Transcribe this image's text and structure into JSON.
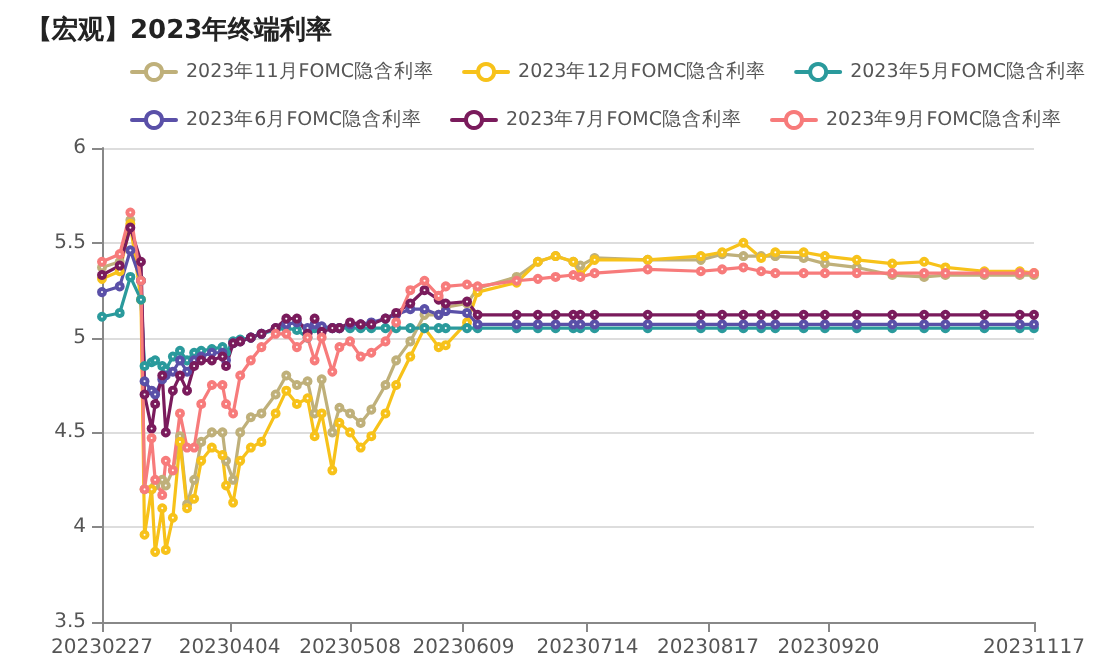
{
  "chart_data": {
    "type": "line",
    "title": "【宏观】2023年终端利率",
    "x": [
      "2023-02-27",
      "2023-03-04",
      "2023-03-07",
      "2023-03-10",
      "2023-03-11",
      "2023-03-13",
      "2023-03-14",
      "2023-03-16",
      "2023-03-17",
      "2023-03-19",
      "2023-03-21",
      "2023-03-23",
      "2023-03-25",
      "2023-03-27",
      "2023-03-30",
      "2023-04-02",
      "2023-04-03",
      "2023-04-05",
      "2023-04-07",
      "2023-04-10",
      "2023-04-13",
      "2023-04-17",
      "2023-04-20",
      "2023-04-23",
      "2023-04-26",
      "2023-04-28",
      "2023-04-30",
      "2023-05-03",
      "2023-05-05",
      "2023-05-08",
      "2023-05-11",
      "2023-05-14",
      "2023-05-18",
      "2023-05-21",
      "2023-05-25",
      "2023-05-29",
      "2023-06-02",
      "2023-06-04",
      "2023-06-10",
      "2023-06-13",
      "2023-06-24",
      "2023-06-30",
      "2023-07-05",
      "2023-07-10",
      "2023-07-12",
      "2023-07-16",
      "2023-07-31",
      "2023-08-15",
      "2023-08-21",
      "2023-08-27",
      "2023-09-01",
      "2023-09-05",
      "2023-09-13",
      "2023-09-19",
      "2023-09-28",
      "2023-10-08",
      "2023-10-17",
      "2023-10-23",
      "2023-11-03",
      "2023-11-13",
      "2023-11-17"
    ],
    "series": [
      {
        "name": "2023年11月FOMC隐含利率",
        "color": "#bfb07a",
        "values": [
          5.37,
          5.4,
          5.62,
          5.3,
          4.2,
          4.2,
          4.22,
          4.25,
          4.22,
          4.3,
          4.48,
          4.12,
          4.25,
          4.45,
          4.5,
          4.5,
          4.35,
          4.25,
          4.5,
          4.58,
          4.6,
          4.7,
          4.8,
          4.75,
          4.77,
          4.6,
          4.78,
          4.5,
          4.63,
          4.6,
          4.55,
          4.62,
          4.75,
          4.88,
          4.98,
          5.12,
          5.12,
          5.16,
          5.18,
          5.26,
          5.32,
          5.4,
          5.43,
          5.4,
          5.38,
          5.42,
          5.41,
          5.41,
          5.44,
          5.43,
          5.43,
          5.43,
          5.42,
          5.39,
          5.37,
          5.33,
          5.32,
          5.33,
          5.33,
          5.33,
          5.33
        ]
      },
      {
        "name": "2023年12月FOMC隐含利率",
        "color": "#f7c21a",
        "values": [
          5.31,
          5.35,
          5.6,
          5.2,
          3.96,
          4.2,
          3.87,
          4.1,
          3.88,
          4.05,
          4.45,
          4.1,
          4.15,
          4.35,
          4.42,
          4.38,
          4.22,
          4.13,
          4.35,
          4.42,
          4.45,
          4.6,
          4.72,
          4.65,
          4.68,
          4.48,
          4.6,
          4.3,
          4.55,
          4.5,
          4.42,
          4.48,
          4.6,
          4.75,
          4.9,
          5.05,
          4.95,
          4.96,
          5.08,
          5.24,
          5.29,
          5.4,
          5.43,
          5.4,
          5.33,
          5.41,
          5.41,
          5.43,
          5.45,
          5.5,
          5.42,
          5.45,
          5.45,
          5.43,
          5.41,
          5.39,
          5.4,
          5.37,
          5.35,
          5.35,
          5.34
        ]
      },
      {
        "name": "2023年5月FOMC隐含利率",
        "color": "#2a9a9c",
        "values": [
          5.11,
          5.13,
          5.32,
          5.2,
          4.85,
          4.87,
          4.88,
          4.85,
          4.83,
          4.9,
          4.93,
          4.88,
          4.92,
          4.93,
          4.94,
          4.95,
          4.92,
          4.98,
          4.99,
          5.0,
          5.02,
          5.04,
          5.05,
          5.04,
          5.0,
          5.05,
          5.05,
          5.05,
          5.05,
          5.05,
          5.05,
          5.05,
          5.05,
          5.05,
          5.05,
          5.05,
          5.05,
          5.05,
          5.05,
          5.05,
          5.05,
          5.05,
          5.05,
          5.05,
          5.05,
          5.05,
          5.05,
          5.05,
          5.05,
          5.05,
          5.05,
          5.05,
          5.05,
          5.05,
          5.05,
          5.05,
          5.05,
          5.05,
          5.05,
          5.05,
          5.05
        ]
      },
      {
        "name": "2023年6月FOMC隐含利率",
        "color": "#5a50a8",
        "values": [
          5.24,
          5.27,
          5.46,
          5.3,
          4.77,
          4.72,
          4.7,
          4.78,
          4.8,
          4.82,
          4.88,
          4.82,
          4.88,
          4.9,
          4.92,
          4.92,
          4.88,
          4.97,
          4.98,
          5.0,
          5.02,
          5.05,
          5.07,
          5.08,
          5.05,
          5.07,
          5.06,
          5.05,
          5.05,
          5.07,
          5.07,
          5.08,
          5.1,
          5.12,
          5.15,
          5.15,
          5.12,
          5.14,
          5.13,
          5.07,
          5.07,
          5.07,
          5.07,
          5.07,
          5.07,
          5.07,
          5.07,
          5.07,
          5.07,
          5.07,
          5.07,
          5.07,
          5.07,
          5.07,
          5.07,
          5.07,
          5.07,
          5.07,
          5.07,
          5.07,
          5.07
        ]
      },
      {
        "name": "2023年7月FOMC隐含利率",
        "color": "#7a1b5c",
        "values": [
          5.33,
          5.38,
          5.58,
          5.4,
          4.7,
          4.52,
          4.65,
          4.8,
          4.5,
          4.72,
          4.8,
          4.72,
          4.85,
          4.88,
          4.88,
          4.9,
          4.85,
          4.97,
          4.98,
          5.0,
          5.02,
          5.05,
          5.1,
          5.1,
          5.02,
          5.1,
          5.03,
          5.05,
          5.05,
          5.08,
          5.07,
          5.07,
          5.1,
          5.13,
          5.18,
          5.25,
          5.2,
          5.18,
          5.19,
          5.12,
          5.12,
          5.12,
          5.12,
          5.12,
          5.12,
          5.12,
          5.12,
          5.12,
          5.12,
          5.12,
          5.12,
          5.12,
          5.12,
          5.12,
          5.12,
          5.12,
          5.12,
          5.12,
          5.12,
          5.12,
          5.12
        ]
      },
      {
        "name": "2023年9月FOMC隐含利率",
        "color": "#f77b7b",
        "values": [
          5.4,
          5.44,
          5.66,
          5.3,
          4.2,
          4.47,
          4.25,
          4.17,
          4.35,
          4.3,
          4.6,
          4.42,
          4.42,
          4.65,
          4.75,
          4.75,
          4.65,
          4.6,
          4.8,
          4.88,
          4.95,
          5.02,
          5.02,
          4.95,
          5.0,
          4.88,
          5.0,
          4.82,
          4.95,
          4.98,
          4.9,
          4.92,
          4.98,
          5.08,
          5.25,
          5.3,
          5.22,
          5.27,
          5.28,
          5.27,
          5.3,
          5.31,
          5.32,
          5.33,
          5.32,
          5.34,
          5.36,
          5.35,
          5.36,
          5.37,
          5.35,
          5.34,
          5.34,
          5.34,
          5.34,
          5.34,
          5.34,
          5.34,
          5.34,
          5.34,
          5.34
        ]
      }
    ],
    "xlim": [
      "2023-02-27",
      "2023-11-17"
    ],
    "xticks": [
      {
        "value": "2023-02-27",
        "label": "20230227"
      },
      {
        "value": "2023-04-04",
        "label": "20230404"
      },
      {
        "value": "2023-05-08",
        "label": "20230508"
      },
      {
        "value": "2023-06-09",
        "label": "20230609"
      },
      {
        "value": "2023-07-14",
        "label": "20230714"
      },
      {
        "value": "2023-08-17",
        "label": "20230817"
      },
      {
        "value": "2023-09-20",
        "label": "20230920"
      },
      {
        "value": "2023-11-17",
        "label": "20231117"
      }
    ],
    "ylim": [
      3.5,
      6
    ],
    "yticks": [
      3.5,
      4,
      4.5,
      5,
      5.5,
      6
    ],
    "grid": "y",
    "legend": "top",
    "marker": "circle",
    "line_style": "solid"
  }
}
